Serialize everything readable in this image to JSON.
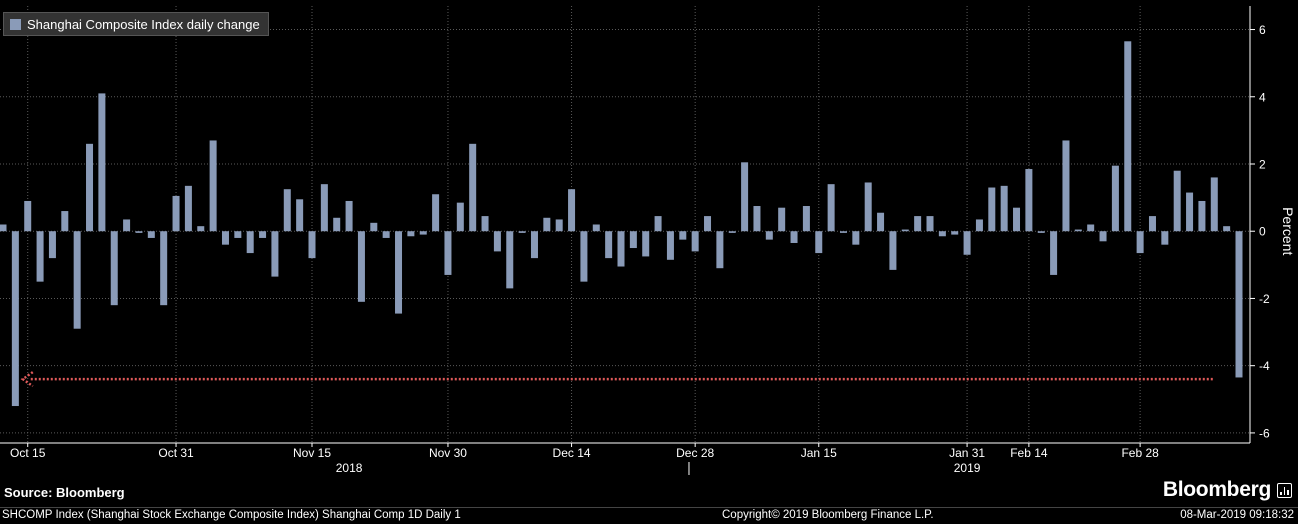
{
  "chart_data": {
    "type": "bar",
    "legend": "Shanghai Composite Index daily change",
    "ylabel": "Percent",
    "ylim": [
      -6.3,
      6.7
    ],
    "yticks": [
      6,
      4,
      2,
      0,
      -2,
      -4,
      -6
    ],
    "grid": true,
    "legend_position": "top-left",
    "bar_color": "#8a9bb8",
    "xtick_labels": [
      {
        "label": "Oct 15",
        "index": 2
      },
      {
        "label": "Oct 31",
        "index": 14
      },
      {
        "label": "Nov 15",
        "index": 25
      },
      {
        "label": "Nov 30",
        "index": 36
      },
      {
        "label": "Dec 14",
        "index": 46
      },
      {
        "label": "Dec 28",
        "index": 56
      },
      {
        "label": "Jan 15",
        "index": 66
      },
      {
        "label": "Jan 31",
        "index": 78
      },
      {
        "label": "Feb 14",
        "index": 83
      },
      {
        "label": "Feb 28",
        "index": 92
      }
    ],
    "year_labels": [
      {
        "label": "2018",
        "index": 28
      },
      {
        "label": "2019",
        "index": 78
      }
    ],
    "year_divider_index": 55.5,
    "values": [
      0.2,
      -5.2,
      0.9,
      -1.5,
      -0.8,
      0.6,
      -2.9,
      2.6,
      4.1,
      -2.2,
      0.35,
      -0.05,
      -0.2,
      -2.2,
      1.05,
      1.35,
      0.15,
      2.7,
      -0.4,
      -0.2,
      -0.65,
      -0.2,
      -1.35,
      1.25,
      0.95,
      -0.8,
      1.4,
      0.4,
      0.9,
      -2.1,
      0.25,
      -0.2,
      -2.45,
      -0.15,
      -0.1,
      1.1,
      -1.3,
      0.85,
      2.6,
      0.45,
      -0.6,
      -1.7,
      -0.05,
      -0.8,
      0.4,
      0.35,
      1.25,
      -1.5,
      0.2,
      -0.8,
      -1.05,
      -0.5,
      -0.75,
      0.45,
      -0.85,
      -0.25,
      -0.6,
      0.45,
      -1.1,
      -0.05,
      2.05,
      0.75,
      -0.25,
      0.7,
      -0.35,
      0.75,
      -0.65,
      1.4,
      -0.05,
      -0.4,
      1.45,
      0.55,
      -1.15,
      0.05,
      0.45,
      0.45,
      -0.15,
      -0.1,
      -0.7,
      0.35,
      1.3,
      1.35,
      0.7,
      1.85,
      -0.05,
      -1.3,
      2.7,
      0.05,
      0.2,
      -0.3,
      1.95,
      5.65,
      -0.65,
      0.45,
      -0.4,
      1.8,
      1.15,
      0.9,
      1.6,
      0.15,
      -4.35
    ],
    "annotation": {
      "type": "dotted-arrow",
      "value": -4.4,
      "color": "#e05a5a",
      "from_index": 1.6,
      "to_index": 98
    }
  },
  "footer": {
    "source": "Source: Bloomberg",
    "brand": "Bloomberg",
    "ticker_line": "SHCOMP Index (Shanghai Stock Exchange Composite Index) Shanghai Comp 1D  Daily 1",
    "copyright": "Copyright© 2019 Bloomberg Finance L.P.",
    "timestamp": "08-Mar-2019 09:18:32"
  }
}
